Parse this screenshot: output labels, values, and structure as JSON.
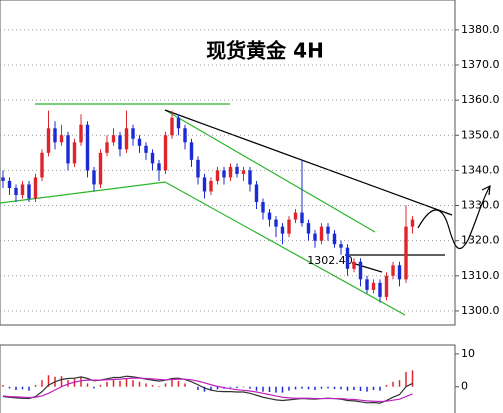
{
  "chart_data": [
    {
      "type": "candlestick",
      "title": "现货黄金 4H",
      "annotation": "1302.40",
      "up_color": "#e0242c",
      "down_color": "#1a2bd6",
      "candles": [
        [
          1338,
          1340,
          1335,
          1337
        ],
        [
          1337,
          1338,
          1333,
          1335
        ],
        [
          1335,
          1336,
          1331,
          1333
        ],
        [
          1333,
          1337,
          1332,
          1336
        ],
        [
          1336,
          1337,
          1331,
          1332
        ],
        [
          1332,
          1339,
          1331,
          1338
        ],
        [
          1338,
          1346,
          1337,
          1345
        ],
        [
          1345,
          1357,
          1344,
          1352
        ],
        [
          1352,
          1354,
          1346,
          1348
        ],
        [
          1348,
          1353,
          1347,
          1350
        ],
        [
          1350,
          1351,
          1340,
          1342
        ],
        [
          1342,
          1349,
          1341,
          1348
        ],
        [
          1348,
          1356,
          1347,
          1353
        ],
        [
          1353,
          1354,
          1338,
          1340
        ],
        [
          1340,
          1341,
          1334,
          1336
        ],
        [
          1336,
          1346,
          1335,
          1345
        ],
        [
          1345,
          1350,
          1344,
          1348
        ],
        [
          1348,
          1352,
          1347,
          1350
        ],
        [
          1350,
          1351,
          1344,
          1346
        ],
        [
          1346,
          1357,
          1345,
          1352
        ],
        [
          1352,
          1353,
          1347,
          1349
        ],
        [
          1349,
          1350,
          1345,
          1347
        ],
        [
          1347,
          1348,
          1343,
          1345
        ],
        [
          1345,
          1346,
          1340,
          1342
        ],
        [
          1342,
          1343,
          1337,
          1340
        ],
        [
          1340,
          1351,
          1339,
          1350
        ],
        [
          1350,
          1357,
          1349,
          1355
        ],
        [
          1355,
          1356,
          1350,
          1352
        ],
        [
          1352,
          1353,
          1346,
          1348
        ],
        [
          1348,
          1349,
          1341,
          1343
        ],
        [
          1343,
          1344,
          1336,
          1338
        ],
        [
          1338,
          1339,
          1332,
          1334
        ],
        [
          1334,
          1338,
          1333,
          1337
        ],
        [
          1337,
          1341,
          1336,
          1340
        ],
        [
          1340,
          1341,
          1336,
          1338
        ],
        [
          1338,
          1342,
          1337,
          1341
        ],
        [
          1341,
          1342,
          1338,
          1339
        ],
        [
          1339,
          1341,
          1337,
          1340
        ],
        [
          1340,
          1341,
          1334,
          1336
        ],
        [
          1336,
          1337,
          1329,
          1331
        ],
        [
          1331,
          1332,
          1326,
          1328
        ],
        [
          1328,
          1329,
          1324,
          1326
        ],
        [
          1326,
          1327,
          1321,
          1324
        ],
        [
          1324,
          1325,
          1319,
          1322
        ],
        [
          1322,
          1327,
          1321,
          1326
        ],
        [
          1326,
          1329,
          1325,
          1328
        ],
        [
          1328,
          1343,
          1324,
          1325
        ],
        [
          1325,
          1326,
          1320,
          1322
        ],
        [
          1322,
          1323,
          1318,
          1320
        ],
        [
          1320,
          1325,
          1319,
          1324
        ],
        [
          1324,
          1325,
          1320,
          1322
        ],
        [
          1322,
          1323,
          1318,
          1319
        ],
        [
          1319,
          1320,
          1316,
          1318
        ],
        [
          1318,
          1319,
          1310,
          1312
        ],
        [
          1312,
          1315,
          1311,
          1314
        ],
        [
          1314,
          1315,
          1307,
          1309
        ],
        [
          1309,
          1310,
          1305,
          1306
        ],
        [
          1306,
          1309,
          1305,
          1308
        ],
        [
          1308,
          1309,
          1302.4,
          1304
        ],
        [
          1304,
          1311,
          1303,
          1310
        ],
        [
          1310,
          1314,
          1309,
          1313
        ],
        [
          1313,
          1314,
          1307,
          1309
        ],
        [
          1309,
          1330,
          1308,
          1324
        ],
        [
          1324,
          1327,
          1322,
          1326
        ]
      ],
      "ylim": [
        1296,
        1388.5
      ],
      "yticks": [
        {
          "value": 1300,
          "label": "1300.0"
        },
        {
          "value": 1310,
          "label": "1310.0"
        },
        {
          "value": 1320,
          "label": "1320.0"
        },
        {
          "value": 1330,
          "label": "1330.0"
        },
        {
          "value": 1340,
          "label": "1340.0"
        },
        {
          "value": 1350,
          "label": "1350.0"
        },
        {
          "value": 1360,
          "label": "1360.0"
        },
        {
          "value": 1370,
          "label": "1370.0"
        },
        {
          "value": 1380,
          "label": "1380.0"
        }
      ],
      "grid": true
    },
    {
      "type": "macd",
      "up_color": "#e0242c",
      "down_color": "#1a2bd6",
      "values": [
        0.5,
        -0.5,
        -1,
        -0.8,
        -1.2,
        0.5,
        2,
        3.5,
        3,
        3.2,
        2,
        2.5,
        3,
        1,
        -0.5,
        0.5,
        1.5,
        2,
        1.8,
        2.5,
        2,
        1.5,
        1,
        0.5,
        0.2,
        1,
        2,
        1.8,
        1,
        0,
        -1,
        -1.5,
        -1.2,
        -0.8,
        -0.6,
        -0.3,
        -0.4,
        -0.2,
        -0.6,
        -1.2,
        -1.5,
        -1.6,
        -1.8,
        -1.8,
        -1.2,
        -0.8,
        -0.6,
        -0.8,
        -1,
        -0.6,
        -0.5,
        -0.7,
        -0.8,
        -1.2,
        -1,
        -1.3,
        -1.5,
        -1,
        -1.2,
        0.5,
        1.5,
        2,
        4.5,
        5
      ],
      "lines": [
        {
          "color": "#333333",
          "values": [
            -3,
            -3.2,
            -3.4,
            -3.5,
            -3.6,
            -3,
            -1.5,
            0.5,
            1.5,
            2.2,
            2.5,
            2.6,
            3,
            2.5,
            1.8,
            2,
            2.4,
            2.8,
            2.8,
            3.2,
            3,
            2.7,
            2.3,
            2,
            1.7,
            2,
            2.5,
            2.6,
            2.2,
            1.5,
            0.6,
            -0.4,
            -1,
            -1.4,
            -1.5,
            -1.5,
            -1.6,
            -1.6,
            -2,
            -2.6,
            -3.2,
            -3.6,
            -4,
            -4.2,
            -4,
            -3.8,
            -3.6,
            -3.7,
            -3.8,
            -3.6,
            -3.5,
            -3.6,
            -3.8,
            -4.2,
            -4.3,
            -4.6,
            -4.9,
            -4.8,
            -5,
            -4.2,
            -3.2,
            -2.4,
            0,
            1
          ]
        },
        {
          "color": "#c020c0",
          "values": [
            -2.8,
            -3,
            -3.1,
            -3.2,
            -3.3,
            -3.2,
            -2.8,
            -2,
            -1,
            0,
            0.8,
            1.4,
            1.8,
            2,
            2,
            2,
            2.1,
            2.2,
            2.3,
            2.5,
            2.6,
            2.6,
            2.5,
            2.4,
            2.2,
            2.1,
            2.2,
            2.3,
            2.3,
            2.1,
            1.7,
            1.2,
            0.6,
            0.1,
            -0.3,
            -0.6,
            -0.9,
            -1.1,
            -1.3,
            -1.6,
            -2,
            -2.4,
            -2.8,
            -3.2,
            -3.4,
            -3.5,
            -3.5,
            -3.5,
            -3.6,
            -3.6,
            -3.6,
            -3.6,
            -3.6,
            -3.8,
            -3.9,
            -4.1,
            -4.3,
            -4.4,
            -4.5,
            -4.4,
            -4.1,
            -3.8,
            -3,
            -2.2
          ]
        }
      ],
      "ylim": [
        -8,
        12.7
      ],
      "yticks": [
        0,
        10
      ]
    }
  ]
}
